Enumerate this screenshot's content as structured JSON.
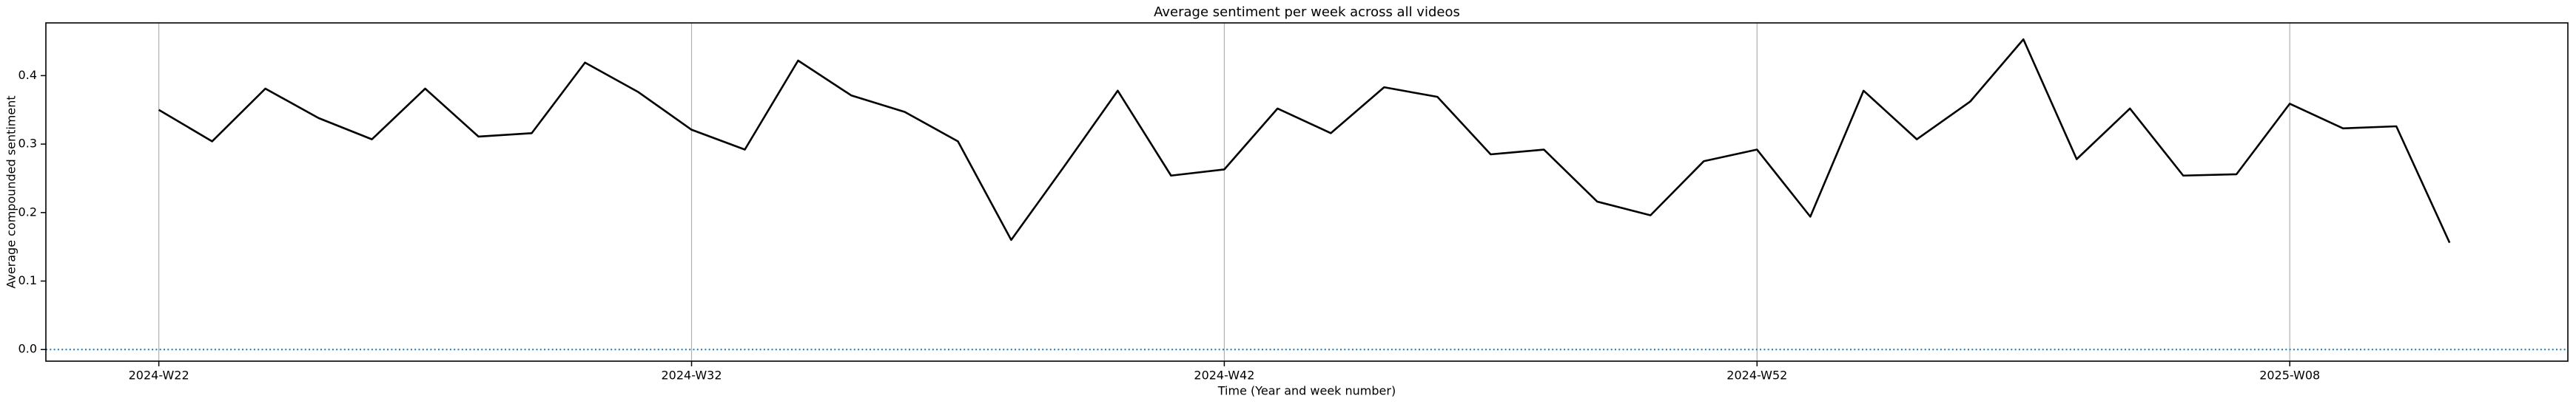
{
  "chart_data": {
    "type": "line",
    "title": "Average sentiment per week across all videos",
    "x_label": "Time (Year and week number)",
    "y_label": "Average compounded sentiment",
    "categories": [
      "2024-W22",
      null,
      null,
      null,
      null,
      null,
      null,
      null,
      null,
      null,
      "2024-W32",
      null,
      null,
      null,
      null,
      null,
      null,
      null,
      null,
      null,
      "2024-W42",
      null,
      null,
      null,
      null,
      null,
      null,
      null,
      null,
      null,
      "2024-W52",
      null,
      null,
      null,
      null,
      null,
      null,
      null,
      null,
      null,
      "2025-W08",
      null,
      null,
      null
    ],
    "series": [
      {
        "name": "Average sentiment",
        "color": "#000000",
        "values": [
          0.35,
          0.304,
          0.381,
          0.338,
          0.307,
          0.381,
          0.311,
          0.316,
          0.419,
          0.376,
          0.321,
          0.292,
          0.422,
          0.371,
          0.347,
          0.304,
          0.16,
          0.268,
          0.378,
          0.254,
          0.263,
          0.352,
          0.316,
          0.383,
          0.369,
          0.285,
          0.292,
          0.216,
          0.196,
          0.275,
          0.292,
          0.194,
          0.378,
          0.307,
          0.362,
          0.453,
          0.278,
          0.352,
          0.254,
          0.256,
          0.359,
          0.323,
          0.326,
          0.156
        ]
      }
    ],
    "ylim": [
      -0.017,
      0.477
    ],
    "yticks": [
      {
        "value": 0,
        "label": "0.0"
      },
      0.1,
      0.2,
      0.3,
      0.4
    ],
    "grid_x": true,
    "reference_line": {
      "value": 0,
      "color": "#1f77b4"
    }
  }
}
